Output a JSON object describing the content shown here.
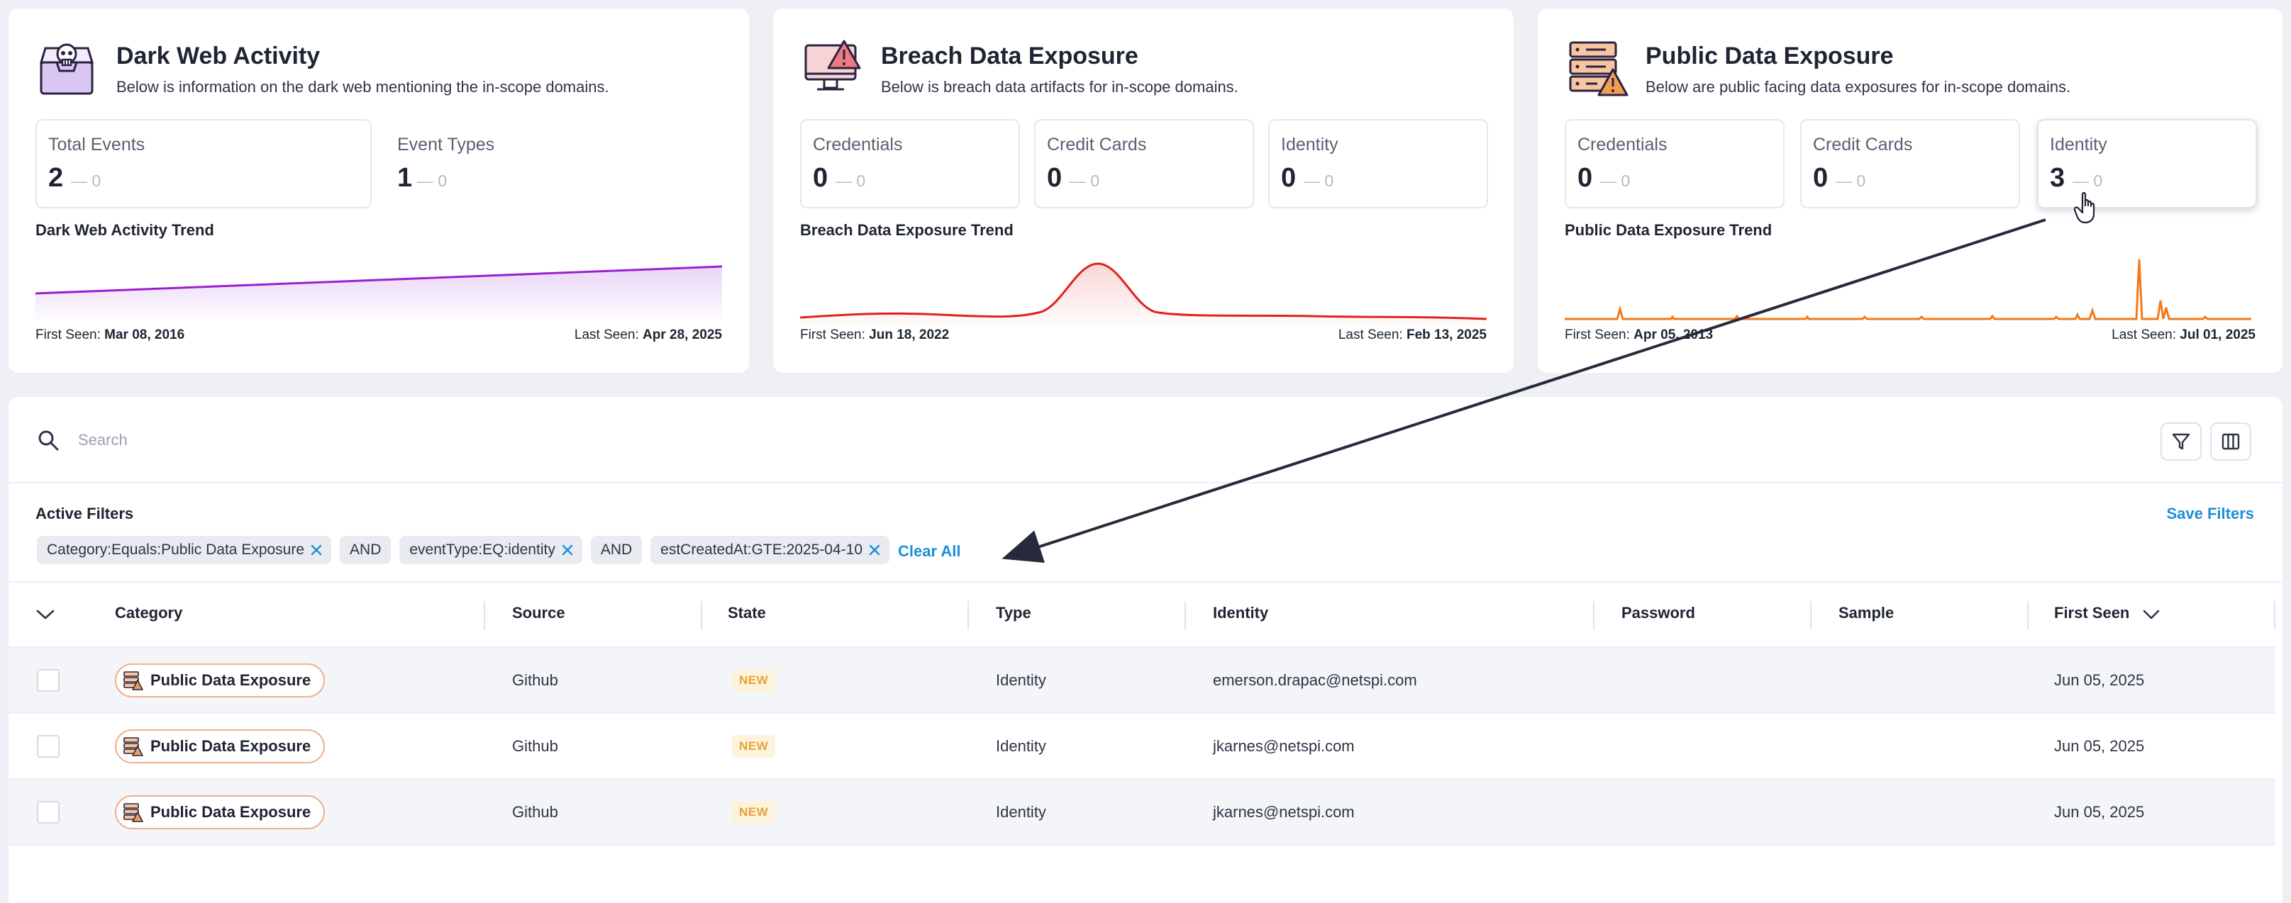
{
  "cards": [
    {
      "title": "Dark Web Activity",
      "description": "Below is information on the dark web mentioning the in-scope domains.",
      "icon": "dark-web-skull-inbox-icon",
      "stats": [
        {
          "label": "Total Events",
          "value": "2",
          "delta": "— 0"
        },
        {
          "label": "Event Types",
          "value": "1",
          "delta": "— 0"
        }
      ],
      "trend_title": "Dark Web Activity Trend",
      "trend_color": "#9b1fd1",
      "first_seen_label": "First Seen:",
      "first_seen": "Mar 08, 2016",
      "last_seen_label": "Last Seen:",
      "last_seen": "Apr 28, 2025"
    },
    {
      "title": "Breach Data Exposure",
      "description": "Below is breach data artifacts for in-scope domains.",
      "icon": "monitor-warning-icon",
      "stats": [
        {
          "label": "Credentials",
          "value": "0",
          "delta": "— 0"
        },
        {
          "label": "Credit Cards",
          "value": "0",
          "delta": "— 0"
        },
        {
          "label": "Identity",
          "value": "0",
          "delta": "— 0"
        }
      ],
      "trend_title": "Breach Data Exposure Trend",
      "trend_color": "#e0221c",
      "first_seen_label": "First Seen:",
      "first_seen": "Jun 18, 2022",
      "last_seen_label": "Last Seen:",
      "last_seen": "Feb 13, 2025"
    },
    {
      "title": "Public Data Exposure",
      "description": "Below are public facing data exposures for in-scope domains.",
      "icon": "server-warning-icon",
      "stats": [
        {
          "label": "Credentials",
          "value": "0",
          "delta": "— 0"
        },
        {
          "label": "Credit Cards",
          "value": "0",
          "delta": "— 0"
        },
        {
          "label": "Identity",
          "value": "3",
          "delta": "— 0"
        }
      ],
      "trend_title": "Public Data Exposure Trend",
      "trend_color": "#f27a1a",
      "first_seen_label": "First Seen:",
      "first_seen": "Apr 05, 2013",
      "last_seen_label": "Last Seen:",
      "last_seen": "Jul 01, 2025"
    }
  ],
  "search": {
    "placeholder": "Search"
  },
  "filters": {
    "title": "Active Filters",
    "save_label": "Save Filters",
    "chips": [
      "Category:Equals:Public Data Exposure",
      "eventType:EQ:identity",
      "estCreatedAt:GTE:2025-04-10"
    ],
    "operator": "AND",
    "clear_label": "Clear All"
  },
  "table": {
    "columns": [
      "Category",
      "Source",
      "State",
      "Type",
      "Identity",
      "Password",
      "Sample",
      "First Seen"
    ],
    "sort_column": "First Seen",
    "rows": [
      {
        "category": "Public Data Exposure",
        "source": "Github",
        "state": "NEW",
        "type": "Identity",
        "identity": "emerson.drapac@netspi.com",
        "password": "",
        "sample": "",
        "first_seen": "Jun 05, 2025"
      },
      {
        "category": "Public Data Exposure",
        "source": "Github",
        "state": "NEW",
        "type": "Identity",
        "identity": "jkarnes@netspi.com",
        "password": "",
        "sample": "",
        "first_seen": "Jun 05, 2025"
      },
      {
        "category": "Public Data Exposure",
        "source": "Github",
        "state": "NEW",
        "type": "Identity",
        "identity": "jkarnes@netspi.com",
        "password": "",
        "sample": "",
        "first_seen": "Jun 05, 2025"
      }
    ]
  },
  "colors": {
    "link": "#1d8fd6",
    "new_badge_text": "#e6a23c",
    "category_pill_border": "#f0b08a",
    "annotation_arrow": "#262a3a"
  }
}
